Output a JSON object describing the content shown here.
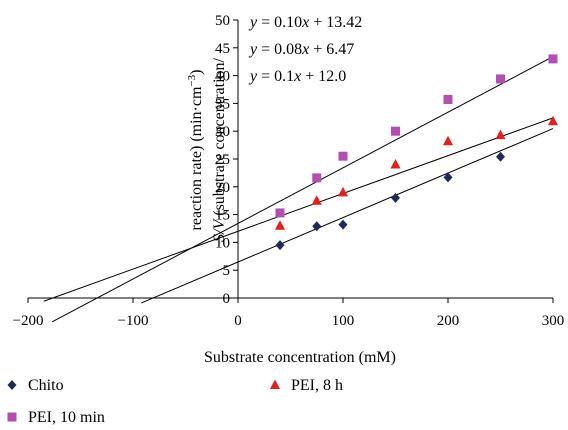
{
  "chart_data": {
    "type": "scatter",
    "xlabel": "Substrate concentration (mM)",
    "ylabel_line1": "S/V (substrate concentration/",
    "ylabel_line2": "reaction rate) (min·cm",
    "ylabel_sup": "−3",
    "ylabel_close": ")",
    "xlim": [
      -200,
      300
    ],
    "ylim": [
      0,
      50
    ],
    "xticks": [
      -200,
      -100,
      0,
      100,
      200,
      300
    ],
    "xtick_labels": [
      "−200",
      "−100",
      "0",
      "100",
      "200",
      "300"
    ],
    "yticks": [
      0,
      5,
      10,
      15,
      20,
      25,
      30,
      35,
      40,
      45,
      50
    ],
    "grid": false,
    "legend_position": "bottom",
    "series": [
      {
        "name": "Chito",
        "marker": "diamond",
        "color": "#1f2a5a",
        "x": [
          40,
          75,
          100,
          150,
          200,
          250
        ],
        "y": [
          9.5,
          12.9,
          13.2,
          18.0,
          21.7,
          25.4
        ]
      },
      {
        "name": "PEI, 8 h",
        "marker": "triangle",
        "color": "#e0201c",
        "x": [
          40,
          75,
          100,
          150,
          200,
          250,
          300
        ],
        "y": [
          13.0,
          17.5,
          19.0,
          24.0,
          28.2,
          29.3,
          31.8
        ]
      },
      {
        "name": "PEI, 10 min",
        "marker": "square",
        "color": "#b34fb0",
        "x": [
          40,
          75,
          100,
          150,
          200,
          250,
          300
        ],
        "y": [
          15.3,
          21.6,
          25.5,
          30.0,
          35.7,
          39.4,
          43.0
        ]
      }
    ],
    "trendlines": [
      {
        "slope": 0.1,
        "intercept": 13.42,
        "x_from": -177,
        "x_to": 300
      },
      {
        "slope": 0.08,
        "intercept": 6.47,
        "x_from": -92,
        "x_to": 300
      },
      {
        "slope": 0.068,
        "intercept": 12.0,
        "x_from": -185,
        "x_to": 300
      }
    ],
    "annotations": [
      {
        "prefix": "y",
        "text": " = 0.10",
        "var": "x",
        "suffix": " + 13.42"
      },
      {
        "prefix": "y",
        "text": " = 0.08",
        "var": "x",
        "suffix": " + 6.47"
      },
      {
        "prefix": "y",
        "text": " = 0.1",
        "var": "x",
        "suffix": " + 12.0"
      }
    ]
  }
}
